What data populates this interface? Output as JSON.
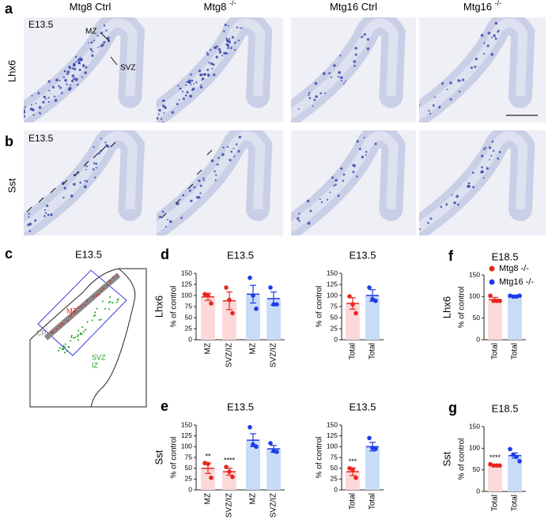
{
  "column_headers": [
    {
      "base": "Mtg8 Ctrl"
    },
    {
      "base": "Mtg8",
      "sup": "-/-"
    },
    {
      "base": "Mtg16 Ctrl"
    },
    {
      "base": "Mtg16",
      "sup": "-/-"
    }
  ],
  "panel_a": {
    "label": "a",
    "row_label": "Lhx6",
    "stage": "E13.5",
    "annotations": [
      "MZ",
      "SVZ"
    ]
  },
  "panel_b": {
    "label": "b",
    "row_label": "Sst",
    "stage": "E13.5"
  },
  "panel_c": {
    "label": "c",
    "title": "E13.5",
    "labels": [
      "MZ",
      "CP",
      "SVZ",
      "IZ"
    ]
  },
  "legend": [
    {
      "name": "Mtg8 -/-",
      "color": "#e8251f"
    },
    {
      "name": "Mtg16 -/-",
      "color": "#1f3be8"
    }
  ],
  "chart_data": [
    {
      "type": "bar",
      "panel": "d",
      "title": "E13.5",
      "row_label": "Lhx6",
      "y_label": "% of control",
      "categories": [
        "MZ",
        "SVZ/IZ",
        "MZ",
        "SVZ/IZ"
      ],
      "values": [
        97,
        88,
        103,
        93
      ],
      "errors": [
        8,
        20,
        20,
        15
      ],
      "points": [
        [
          103,
          100,
          82
        ],
        [
          118,
          90,
          60
        ],
        [
          140,
          100,
          70
        ],
        [
          118,
          80,
          80
        ]
      ],
      "bar_colors": [
        "#fcd9d9",
        "#fcd9d9",
        "#c9dcf7",
        "#c9dcf7"
      ],
      "point_colors": [
        "#e8251f",
        "#e8251f",
        "#1f3be8",
        "#1f3be8"
      ],
      "ylim": [
        0,
        150
      ],
      "yticks": [
        0,
        25,
        50,
        75,
        100,
        125,
        150
      ]
    },
    {
      "type": "bar",
      "title": "E13.5",
      "y_label": "% of control",
      "categories": [
        "Total",
        "Total"
      ],
      "values": [
        82,
        100
      ],
      "errors": [
        13,
        13
      ],
      "points": [
        [
          98,
          80,
          60
        ],
        [
          118,
          92,
          88
        ]
      ],
      "bar_colors": [
        "#fcd9d9",
        "#c9dcf7"
      ],
      "point_colors": [
        "#e8251f",
        "#1f3be8"
      ],
      "ylim": [
        0,
        150
      ],
      "yticks": [
        0,
        25,
        50,
        75,
        100,
        125,
        150
      ]
    },
    {
      "type": "bar",
      "panel": "f",
      "title": "E18.5",
      "row_label": "Lhx6",
      "y_label": "% of control",
      "categories": [
        "Total",
        "Total"
      ],
      "values": [
        93,
        100
      ],
      "errors": [
        5,
        2
      ],
      "points": [
        [
          102,
          90,
          90,
          90
        ],
        [
          102,
          100,
          100,
          102
        ]
      ],
      "bar_colors": [
        "#fcd9d9",
        "#c9dcf7"
      ],
      "point_colors": [
        "#e8251f",
        "#1f3be8"
      ],
      "ylim": [
        0,
        150
      ],
      "yticks": [
        0,
        50,
        100,
        150
      ]
    },
    {
      "type": "bar",
      "panel": "e",
      "title": "E13.5",
      "row_label": "Sst",
      "y_label": "% of control",
      "categories": [
        "MZ",
        "SVZ/IZ",
        "MZ",
        "SVZ/IZ"
      ],
      "values": [
        50,
        42,
        115,
        95
      ],
      "errors": [
        12,
        8,
        15,
        8
      ],
      "significance": [
        "**",
        "****",
        null,
        null
      ],
      "points": [
        [
          62,
          60,
          28
        ],
        [
          53,
          42,
          30
        ],
        [
          145,
          105,
          100
        ],
        [
          108,
          90,
          88
        ]
      ],
      "bar_colors": [
        "#fcd9d9",
        "#fcd9d9",
        "#c9dcf7",
        "#c9dcf7"
      ],
      "point_colors": [
        "#e8251f",
        "#e8251f",
        "#1f3be8",
        "#1f3be8"
      ],
      "ylim": [
        0,
        150
      ],
      "yticks": [
        0,
        25,
        50,
        75,
        100,
        125,
        150
      ]
    },
    {
      "type": "bar",
      "title": "E13.5",
      "y_label": "% of control",
      "categories": [
        "Total",
        "Total"
      ],
      "values": [
        42,
        100
      ],
      "errors": [
        9,
        10
      ],
      "significance": [
        "***",
        null
      ],
      "points": [
        [
          50,
          47,
          28
        ],
        [
          120,
          97,
          95
        ]
      ],
      "bar_colors": [
        "#fcd9d9",
        "#c9dcf7"
      ],
      "point_colors": [
        "#e8251f",
        "#1f3be8"
      ],
      "ylim": [
        0,
        150
      ],
      "yticks": [
        0,
        25,
        50,
        75,
        100,
        125,
        150
      ]
    },
    {
      "type": "bar",
      "panel": "g",
      "title": "E18.5",
      "row_label": "Sst",
      "y_label": "% of control",
      "categories": [
        "Total",
        "Total"
      ],
      "values": [
        60,
        83
      ],
      "errors": [
        2,
        6
      ],
      "significance": [
        "****",
        null
      ],
      "points": [
        [
          63,
          60,
          60,
          60
        ],
        [
          98,
          85,
          80,
          70
        ]
      ],
      "bar_colors": [
        "#fcd9d9",
        "#c9dcf7"
      ],
      "point_colors": [
        "#e8251f",
        "#1f3be8"
      ],
      "ylim": [
        0,
        150
      ],
      "yticks": [
        0,
        50,
        100,
        150
      ]
    }
  ]
}
